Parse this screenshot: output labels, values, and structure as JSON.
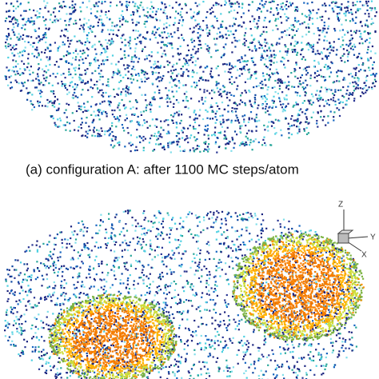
{
  "caption": "(a) configuration A: after 1100 MC steps/atom",
  "axes": {
    "z": "Z",
    "y": "Y",
    "x": "X"
  }
}
